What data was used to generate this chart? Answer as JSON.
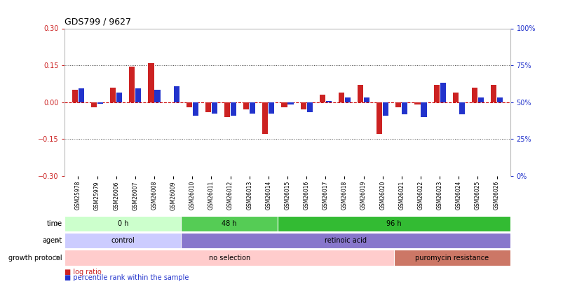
{
  "title": "GDS799 / 9627",
  "samples": [
    "GSM25978",
    "GSM25979",
    "GSM26006",
    "GSM26007",
    "GSM26008",
    "GSM26009",
    "GSM26010",
    "GSM26011",
    "GSM26012",
    "GSM26013",
    "GSM26014",
    "GSM26015",
    "GSM26016",
    "GSM26017",
    "GSM26018",
    "GSM26019",
    "GSM26020",
    "GSM26021",
    "GSM26022",
    "GSM26023",
    "GSM26024",
    "GSM26025",
    "GSM26026"
  ],
  "log_ratio": [
    0.05,
    -0.02,
    0.06,
    0.145,
    0.16,
    0.0,
    -0.02,
    -0.04,
    -0.06,
    -0.03,
    -0.13,
    -0.02,
    -0.03,
    0.03,
    0.04,
    0.07,
    -0.13,
    -0.02,
    -0.01,
    0.07,
    0.04,
    0.06,
    0.07
  ],
  "percentile_dev": [
    0.055,
    -0.005,
    0.04,
    0.055,
    0.05,
    0.065,
    -0.055,
    -0.045,
    -0.055,
    -0.045,
    -0.045,
    -0.01,
    -0.04,
    0.005,
    0.02,
    0.02,
    -0.055,
    -0.05,
    -0.06,
    0.08,
    -0.05,
    0.02,
    0.02
  ],
  "bar_color_red": "#cc2222",
  "bar_color_blue": "#2233cc",
  "ylim_left": [
    -0.3,
    0.3
  ],
  "ylim_right": [
    0,
    100
  ],
  "yticks_left": [
    -0.3,
    -0.15,
    0.0,
    0.15,
    0.3
  ],
  "yticks_right": [
    0,
    25,
    50,
    75,
    100
  ],
  "hlines": [
    0.15,
    -0.15
  ],
  "hline_zero_color": "#cc0000",
  "hline_dotted_color": "#444444",
  "time_groups": [
    {
      "label": "0 h",
      "start": 0,
      "end": 6,
      "color": "#ccffcc"
    },
    {
      "label": "48 h",
      "start": 6,
      "end": 11,
      "color": "#55cc55"
    },
    {
      "label": "96 h",
      "start": 11,
      "end": 23,
      "color": "#33bb33"
    }
  ],
  "agent_groups": [
    {
      "label": "control",
      "start": 0,
      "end": 6,
      "color": "#ccccff"
    },
    {
      "label": "retinoic acid",
      "start": 6,
      "end": 23,
      "color": "#8877cc"
    }
  ],
  "growth_groups": [
    {
      "label": "no selection",
      "start": 0,
      "end": 17,
      "color": "#ffcccc"
    },
    {
      "label": "puromycin resistance",
      "start": 17,
      "end": 23,
      "color": "#cc7766"
    }
  ],
  "legend_red": "log ratio",
  "legend_blue": "percentile rank within the sample",
  "bg_color": "#ffffff",
  "bar_width": 0.3
}
